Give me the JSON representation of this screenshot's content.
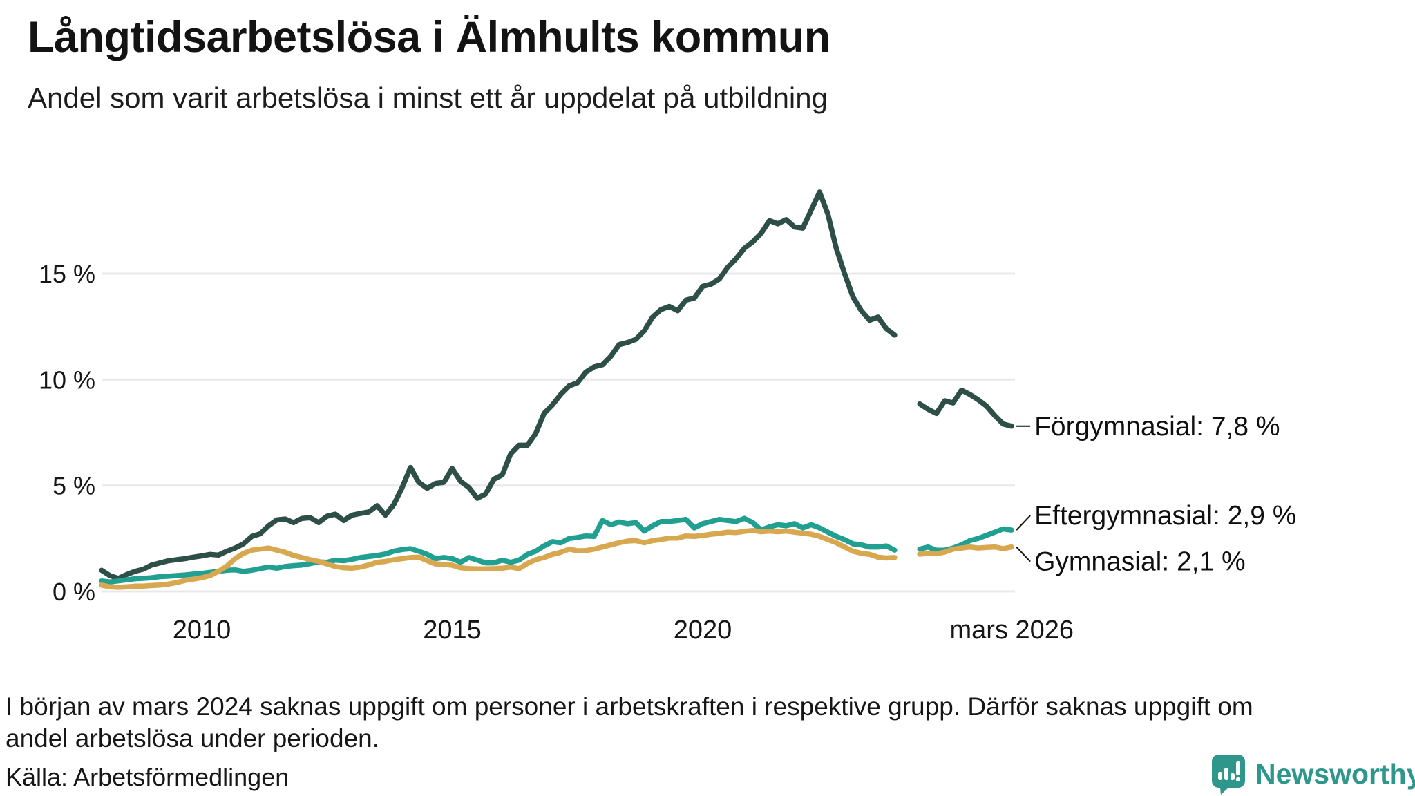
{
  "header": {
    "title": "Långtidsarbetslösa i Älmhults kommun",
    "subtitle": "Andel som varit arbetslösa i minst ett år uppdelat på utbildning"
  },
  "footnote": {
    "lines": [
      "I början av mars 2024 saknas uppgift om personer i arbetskraften i respektive grupp. Därför saknas uppgift om",
      "andel arbetslösa under perioden."
    ],
    "source": "Källa: Arbetsförmedlingen"
  },
  "branding": {
    "name": "Newsworthy",
    "logo_icon": "bar-chart-speech-bubble",
    "color": "#2e968b"
  },
  "chart_data": {
    "type": "line",
    "title": "Långtidsarbetslösa i Älmhults kommun",
    "subtitle": "Andel som varit arbetslösa i minst ett år uppdelat på utbildning",
    "unit": "%",
    "grid": true,
    "legend_position": "right-end-labels",
    "x_axis": {
      "range": [
        2008.0,
        2026.25
      ],
      "ticks": [
        {
          "label": "2010",
          "t": 2010
        },
        {
          "label": "2015",
          "t": 2015
        },
        {
          "label": "2020",
          "t": 2020
        },
        {
          "label": "mars 2026",
          "t": 2026.17
        }
      ]
    },
    "y_axis": {
      "range": [
        0,
        19.6
      ],
      "ticks": [
        {
          "label": "0 %",
          "v": 0
        },
        {
          "label": "5 %",
          "v": 5
        },
        {
          "label": "10 %",
          "v": 10
        },
        {
          "label": "15 %",
          "v": 15
        }
      ]
    },
    "data_gap": {
      "from": 2023.92,
      "to": 2024.33,
      "reason": "saknas uppgift mars 2024"
    },
    "series": [
      {
        "name": "Förgymnasial",
        "label": "Förgymnasial: 7,8 %",
        "end_value": "7,8 %",
        "color": "#2d4f48",
        "segments": [
          {
            "start": 2008.0,
            "step": 0.166667,
            "values": [
              1.0,
              0.75,
              0.62,
              0.8,
              0.95,
              1.05,
              1.25,
              1.35,
              1.45,
              1.5,
              1.55,
              1.62,
              1.68,
              1.75,
              1.72,
              1.9,
              2.05,
              2.25,
              2.6,
              2.72,
              3.1,
              3.38,
              3.42,
              3.25,
              3.45,
              3.48,
              3.25,
              3.55,
              3.65,
              3.35,
              3.6,
              3.68,
              3.75,
              4.05,
              3.6,
              4.1,
              4.9,
              5.85,
              5.15,
              4.87,
              5.1,
              5.15,
              5.8,
              5.2,
              4.9,
              4.4,
              4.6,
              5.3,
              5.5,
              6.5,
              6.9,
              6.9,
              7.45,
              8.4,
              8.8,
              9.3,
              9.7,
              9.85,
              10.35,
              10.6,
              10.7,
              11.1,
              11.65,
              11.75,
              11.9,
              12.3,
              12.95,
              13.3,
              13.45,
              13.25,
              13.75,
              13.85,
              14.4,
              14.5,
              14.75,
              15.3,
              15.7,
              16.2,
              16.5,
              16.9,
              17.5,
              17.35,
              17.55,
              17.2,
              17.15,
              18.0,
              18.85,
              17.8,
              16.2,
              15.0,
              13.9,
              13.25,
              12.8,
              12.95,
              12.4,
              12.1
            ]
          },
          {
            "start": 2024.3333,
            "step": 0.166667,
            "values": [
              8.85,
              8.6,
              8.4,
              9.0,
              8.9,
              9.5,
              9.3,
              9.05,
              8.75,
              8.3,
              7.9,
              7.8
            ]
          }
        ]
      },
      {
        "name": "Eftergymnasial",
        "label": "Eftergymnasial: 2,9 %",
        "end_value": "2,9 %",
        "color": "#21a091",
        "segments": [
          {
            "start": 2008.0,
            "step": 0.166667,
            "values": [
              0.5,
              0.45,
              0.5,
              0.55,
              0.6,
              0.62,
              0.65,
              0.7,
              0.72,
              0.75,
              0.78,
              0.82,
              0.85,
              0.9,
              0.95,
              1.0,
              1.02,
              0.95,
              1.0,
              1.08,
              1.15,
              1.1,
              1.18,
              1.22,
              1.25,
              1.32,
              1.4,
              1.38,
              1.48,
              1.45,
              1.52,
              1.6,
              1.65,
              1.7,
              1.77,
              1.9,
              1.98,
              2.02,
              1.9,
              1.75,
              1.55,
              1.6,
              1.55,
              1.38,
              1.6,
              1.48,
              1.35,
              1.35,
              1.48,
              1.38,
              1.48,
              1.75,
              1.9,
              2.15,
              2.35,
              2.3,
              2.5,
              2.55,
              2.62,
              2.6,
              3.35,
              3.15,
              3.28,
              3.2,
              3.25,
              2.85,
              3.1,
              3.3,
              3.3,
              3.35,
              3.4,
              3.0,
              3.2,
              3.3,
              3.4,
              3.35,
              3.3,
              3.45,
              3.25,
              2.9,
              3.05,
              3.15,
              3.1,
              3.2,
              3.0,
              3.15,
              3.0,
              2.8,
              2.6,
              2.45,
              2.25,
              2.2,
              2.1,
              2.1,
              2.15,
              1.95
            ]
          },
          {
            "start": 2024.3333,
            "step": 0.166667,
            "values": [
              2.0,
              2.1,
              1.95,
              1.95,
              2.05,
              2.2,
              2.4,
              2.5,
              2.65,
              2.8,
              2.95,
              2.9
            ]
          }
        ]
      },
      {
        "name": "Gymnasial",
        "label": "Gymnasial: 2,1 %",
        "end_value": "2,1 %",
        "color": "#d8a850",
        "segments": [
          {
            "start": 2008.0,
            "step": 0.166667,
            "values": [
              0.3,
              0.22,
              0.2,
              0.22,
              0.25,
              0.25,
              0.28,
              0.3,
              0.35,
              0.42,
              0.52,
              0.58,
              0.65,
              0.75,
              0.95,
              1.2,
              1.55,
              1.8,
              1.95,
              2.0,
              2.05,
              1.95,
              1.85,
              1.7,
              1.6,
              1.5,
              1.42,
              1.3,
              1.18,
              1.12,
              1.1,
              1.15,
              1.25,
              1.38,
              1.42,
              1.5,
              1.55,
              1.6,
              1.62,
              1.45,
              1.3,
              1.28,
              1.24,
              1.12,
              1.08,
              1.07,
              1.07,
              1.08,
              1.1,
              1.15,
              1.08,
              1.32,
              1.5,
              1.6,
              1.75,
              1.85,
              2.0,
              1.92,
              1.93,
              2.0,
              2.1,
              2.2,
              2.3,
              2.38,
              2.4,
              2.3,
              2.4,
              2.45,
              2.52,
              2.52,
              2.62,
              2.6,
              2.64,
              2.7,
              2.74,
              2.8,
              2.78,
              2.84,
              2.88,
              2.82,
              2.85,
              2.82,
              2.85,
              2.8,
              2.75,
              2.7,
              2.6,
              2.45,
              2.3,
              2.1,
              1.9,
              1.8,
              1.75,
              1.62,
              1.58,
              1.6
            ]
          },
          {
            "start": 2024.3333,
            "step": 0.166667,
            "values": [
              1.76,
              1.8,
              1.78,
              1.86,
              2.0,
              2.05,
              2.1,
              2.05,
              2.08,
              2.1,
              2.02,
              2.1
            ]
          }
        ]
      }
    ],
    "style": {
      "grid_color": "#e9e9ec",
      "text_color": "#161616",
      "background": "#ffffff"
    }
  }
}
